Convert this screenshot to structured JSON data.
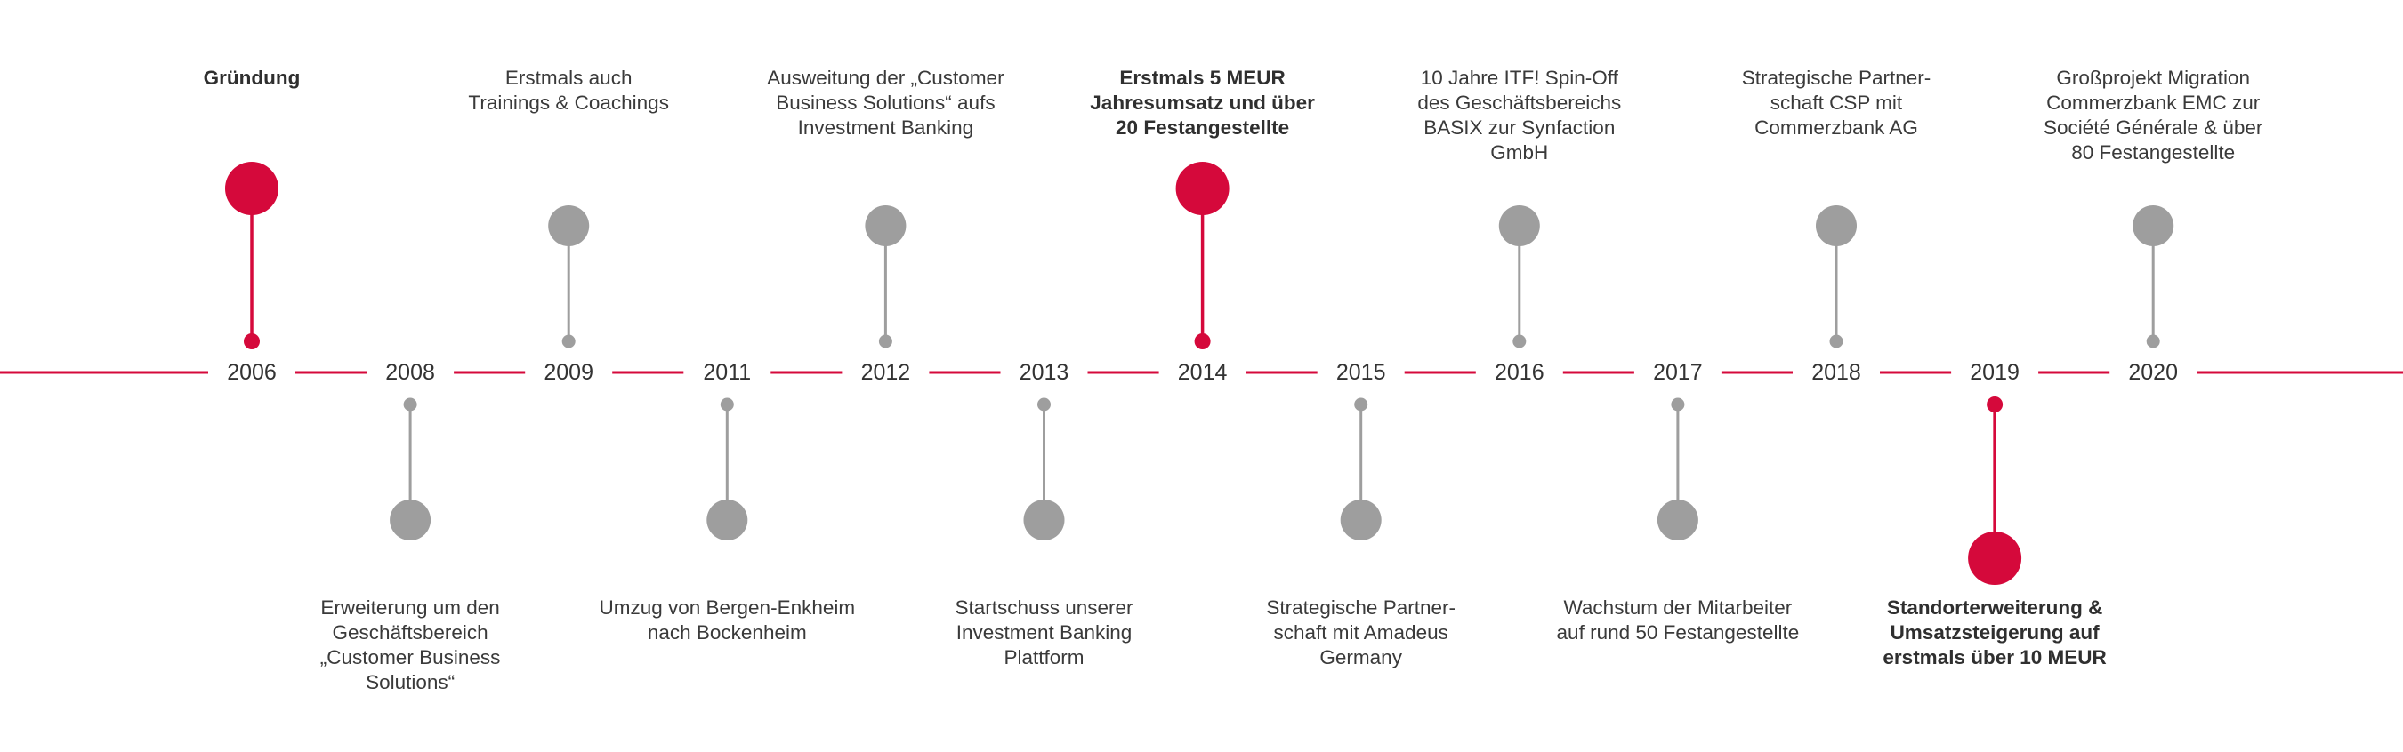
{
  "colors": {
    "accent": "#d5093b",
    "muted": "#9e9e9e"
  },
  "milestones": [
    {
      "year": "2006",
      "side": "above",
      "highlight": true,
      "text": [
        "Gründung"
      ]
    },
    {
      "year": "2008",
      "side": "below",
      "highlight": false,
      "text": [
        "Erweiterung um den",
        "Geschäftsbereich",
        "„Customer Business",
        "Solutions“"
      ]
    },
    {
      "year": "2009",
      "side": "above",
      "highlight": false,
      "text": [
        "Erstmals auch",
        "Trainings & Coachings"
      ]
    },
    {
      "year": "2011",
      "side": "below",
      "highlight": false,
      "text": [
        "Umzug von Bergen-Enkheim",
        "nach Bockenheim"
      ]
    },
    {
      "year": "2012",
      "side": "above",
      "highlight": false,
      "text": [
        "Ausweitung der „Customer",
        "Business Solutions“ aufs",
        "Investment Banking"
      ]
    },
    {
      "year": "2013",
      "side": "below",
      "highlight": false,
      "text": [
        "Startschuss unserer",
        "Investment Banking",
        "Plattform"
      ]
    },
    {
      "year": "2014",
      "side": "above",
      "highlight": true,
      "text": [
        "Erstmals 5 MEUR",
        "Jahresumsatz und über",
        "20 Festangestellte"
      ]
    },
    {
      "year": "2015",
      "side": "below",
      "highlight": false,
      "text": [
        "Strategische Partner-",
        "schaft mit Amadeus",
        "Germany"
      ]
    },
    {
      "year": "2016",
      "side": "above",
      "highlight": false,
      "text": [
        "10 Jahre ITF! Spin-Off",
        "des Geschäftsbereichs",
        "BASIX zur Synfaction",
        "GmbH"
      ]
    },
    {
      "year": "2017",
      "side": "below",
      "highlight": false,
      "text": [
        "Wachstum der Mitarbeiter",
        "auf rund 50 Festangestellte"
      ]
    },
    {
      "year": "2018",
      "side": "above",
      "highlight": false,
      "text": [
        "Strategische Partner-",
        "schaft CSP mit",
        "Commerzbank AG"
      ]
    },
    {
      "year": "2019",
      "side": "below",
      "highlight": true,
      "text": [
        "Standorterweiterung &",
        "Umsatzsteigerung auf",
        "erstmals über 10 MEUR"
      ]
    },
    {
      "year": "2020",
      "side": "above",
      "highlight": false,
      "text": [
        "Großprojekt Migration",
        "Commerzbank EMC zur",
        "Société Générale & über",
        "80 Festangestellte"
      ]
    }
  ]
}
